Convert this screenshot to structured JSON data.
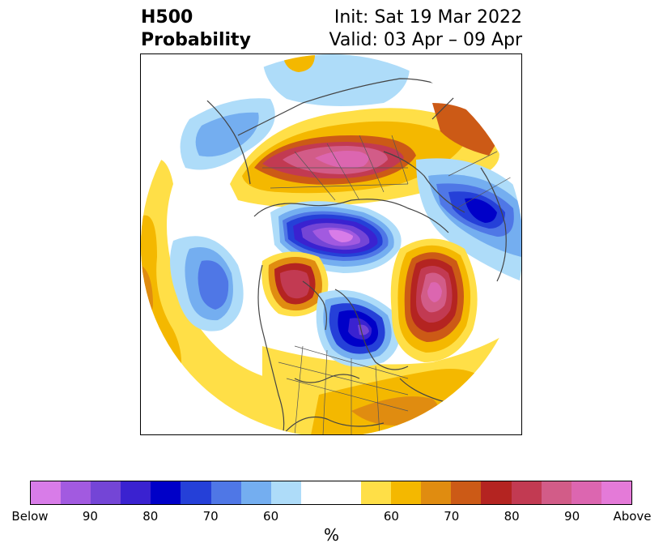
{
  "title": {
    "left_line1": "H500",
    "left_line2": "Probability",
    "right_line1": "Init: Sat 19 Mar 2022",
    "right_line2": "Valid: 03 Apr – 09 Apr"
  },
  "colorbar": {
    "colors": [
      "#d87ce8",
      "#a25ae0",
      "#7445d6",
      "#3a22d0",
      "#0000c8",
      "#2540d8",
      "#4f77e6",
      "#74aef0",
      "#aedcf9",
      "#ffffff",
      "#ffffff",
      "#ffdf47",
      "#f4b800",
      "#e08c10",
      "#cc5a16",
      "#b42421",
      "#c23a52",
      "#d25c88",
      "#dc66b0",
      "#e47ad8"
    ],
    "labels": [
      "Below",
      "90",
      "80",
      "70",
      "60",
      "",
      "60",
      "70",
      "80",
      "90",
      "Above"
    ],
    "units": "%"
  },
  "map": {
    "colors": {
      "yellow": "#ffdf47",
      "gold": "#f4b800",
      "orange": "#e08c10",
      "darkorange": "#cc5a16",
      "red": "#b42421",
      "crimson": "#c23a52",
      "pink": "#d25c88",
      "magenta": "#dc66b0",
      "lightblue": "#aedcf9",
      "skyblue": "#74aef0",
      "cornflower": "#4f77e6",
      "royal": "#2540d8",
      "blue": "#0000c8",
      "indigo": "#3a22d0",
      "violet": "#7445d6",
      "purple": "#a25ae0",
      "orchid": "#d87ce8",
      "coast": "#444444"
    }
  }
}
